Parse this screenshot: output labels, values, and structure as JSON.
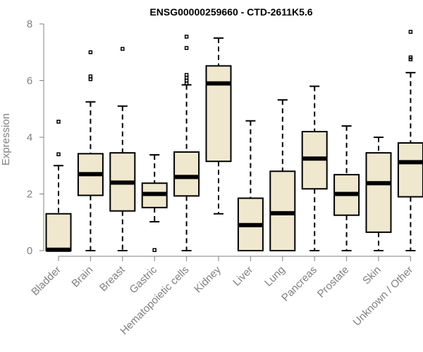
{
  "chart_data": {
    "type": "boxplot",
    "title": "ENSG00000259660 - CTD-2611K5.6",
    "xlabel": "",
    "ylabel": "Expression",
    "ylim": [
      0,
      8
    ],
    "yticks": [
      "0",
      "2",
      "4",
      "6",
      "8"
    ],
    "box_color": "#efe8cf",
    "categories": [
      "Bladder",
      "Brain",
      "Breast",
      "Gastric",
      "Hematopoietic cells",
      "Kidney",
      "Liver",
      "Lung",
      "Pancreas",
      "Prostate",
      "Skin",
      "Unknown / Other"
    ],
    "boxes": [
      {
        "name": "Bladder",
        "min": 0,
        "q1": 0,
        "median": 0.03,
        "q3": 1.3,
        "max": 3.0,
        "outliers": [
          3.4,
          4.55
        ]
      },
      {
        "name": "Brain",
        "min": 0,
        "q1": 1.95,
        "median": 2.7,
        "q3": 3.42,
        "max": 5.25,
        "outliers": [
          6.05,
          6.15,
          7.0
        ]
      },
      {
        "name": "Breast",
        "min": 0,
        "q1": 1.4,
        "median": 2.4,
        "q3": 3.45,
        "max": 5.1,
        "outliers": [
          7.12
        ]
      },
      {
        "name": "Gastric",
        "min": 1.02,
        "q1": 1.52,
        "median": 2.0,
        "q3": 2.38,
        "max": 3.38,
        "outliers": [
          0.02
        ]
      },
      {
        "name": "Hematopoietic cells",
        "min": 0,
        "q1": 1.93,
        "median": 2.6,
        "q3": 3.48,
        "max": 5.85,
        "outliers": [
          5.9,
          6.0,
          6.1,
          6.2,
          7.15,
          7.55
        ]
      },
      {
        "name": "Kidney",
        "min": 1.3,
        "q1": 3.15,
        "median": 5.9,
        "q3": 6.52,
        "max": 7.5,
        "outliers": []
      },
      {
        "name": "Liver",
        "min": 0,
        "q1": 0,
        "median": 0.9,
        "q3": 1.85,
        "max": 4.58,
        "outliers": []
      },
      {
        "name": "Lung",
        "min": 0,
        "q1": 0,
        "median": 1.32,
        "q3": 2.8,
        "max": 5.32,
        "outliers": []
      },
      {
        "name": "Pancreas",
        "min": 0,
        "q1": 2.18,
        "median": 3.25,
        "q3": 4.2,
        "max": 5.8,
        "outliers": []
      },
      {
        "name": "Prostate",
        "min": 0,
        "q1": 1.25,
        "median": 2.0,
        "q3": 2.68,
        "max": 4.4,
        "outliers": []
      },
      {
        "name": "Skin",
        "min": 0,
        "q1": 0.65,
        "median": 2.38,
        "q3": 3.45,
        "max": 4.0,
        "outliers": []
      },
      {
        "name": "Unknown / Other",
        "min": 0,
        "q1": 1.9,
        "median": 3.12,
        "q3": 3.8,
        "max": 6.28,
        "outliers": [
          6.75,
          6.82,
          7.72
        ]
      }
    ]
  }
}
